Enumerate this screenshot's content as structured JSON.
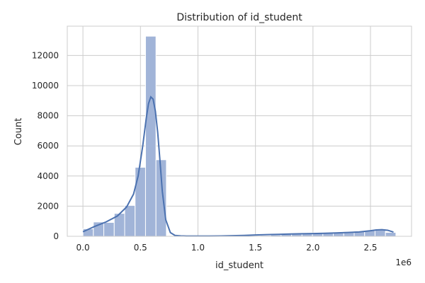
{
  "chart_data": {
    "type": "bar",
    "title": "Distribution of id_student",
    "xlabel": "id_student",
    "ylabel": "Count",
    "x_offset_label": "1e6",
    "bin_edges": [
      0,
      0.0907,
      0.1814,
      0.2721,
      0.3628,
      0.4535,
      0.5442,
      0.6349,
      0.7256,
      0.8163,
      0.907,
      0.9977,
      1.0884,
      1.1791,
      1.2698,
      1.3605,
      1.4512,
      1.5419,
      1.6326,
      1.7233,
      1.814,
      1.9047,
      1.9954,
      2.0861,
      2.1768,
      2.2675,
      2.3582,
      2.4489,
      2.5396,
      2.6303,
      2.721
    ],
    "values": [
      500,
      950,
      920,
      1520,
      2050,
      4580,
      13280,
      5080,
      5,
      5,
      5,
      5,
      5,
      5,
      5,
      10,
      30,
      55,
      90,
      140,
      175,
      200,
      230,
      250,
      280,
      310,
      350,
      390,
      440,
      260
    ],
    "kde": {
      "x": [
        0.0,
        0.1,
        0.2,
        0.3,
        0.38,
        0.44,
        0.48,
        0.52,
        0.55,
        0.57,
        0.59,
        0.61,
        0.63,
        0.65,
        0.67,
        0.69,
        0.72,
        0.76,
        0.8,
        0.85,
        0.9,
        1.0,
        1.1,
        1.2,
        1.3,
        1.4,
        1.5,
        1.6,
        1.7,
        1.8,
        1.9,
        2.0,
        2.1,
        2.2,
        2.3,
        2.4,
        2.5,
        2.55,
        2.6,
        2.65,
        2.7
      ],
      "y": [
        300,
        650,
        950,
        1350,
        1950,
        2800,
        4000,
        6000,
        7800,
        8800,
        9250,
        9100,
        8300,
        6900,
        5000,
        3000,
        1100,
        250,
        60,
        30,
        20,
        15,
        20,
        25,
        40,
        60,
        90,
        110,
        130,
        150,
        170,
        180,
        200,
        220,
        250,
        290,
        370,
        420,
        440,
        400,
        280
      ]
    },
    "xlim": [
      -0.136,
      2.857
    ],
    "ylim": [
      0,
      13944
    ],
    "xticks": [
      0.0,
      0.5,
      1.0,
      1.5,
      2.0,
      2.5
    ],
    "xtick_labels": [
      "0.0",
      "0.5",
      "1.0",
      "1.5",
      "2.0",
      "2.5"
    ],
    "yticks": [
      0,
      2000,
      4000,
      6000,
      8000,
      10000,
      12000
    ],
    "ytick_labels": [
      "0",
      "2000",
      "4000",
      "6000",
      "8000",
      "10000",
      "12000"
    ],
    "grid": true,
    "bar_color": "#a1b4d8",
    "line_color": "#4c72b0"
  }
}
